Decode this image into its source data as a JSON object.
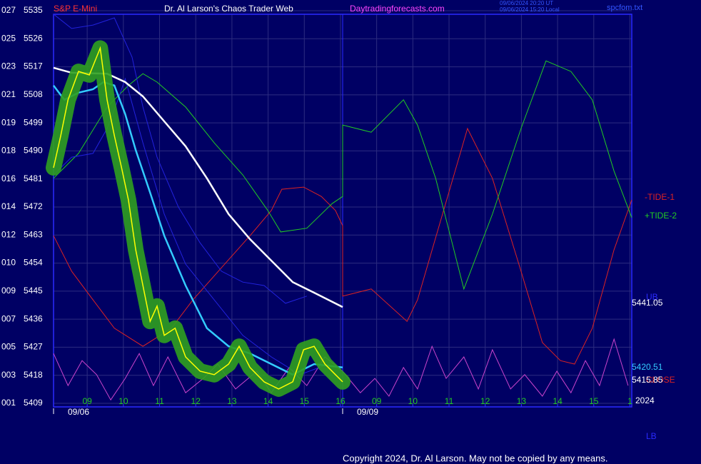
{
  "header": {
    "symbol": "S&P E-Mini",
    "title": "Dr. Al Larson's Chaos Trader Web",
    "site": "Daytradingforecasts.com",
    "time_ut": "09/06/2024 20:20 UT",
    "time_local": "09/06/2024 15:20 Local",
    "file": "spcfom.txt"
  },
  "chart_data": {
    "type": "line",
    "ylim": [
      5409,
      5535
    ],
    "yticks": [
      5409,
      5418,
      5427,
      5436,
      5445,
      5454,
      5463,
      5472,
      5481,
      5490,
      5499,
      5508,
      5517,
      5526,
      5535
    ],
    "ytick_codes": [
      "001",
      "003",
      "005",
      "007",
      "009",
      "010",
      "012",
      "014",
      "016",
      "018",
      "019",
      "021",
      "023",
      "025",
      "027"
    ],
    "xlim": [
      8.07,
      24.05
    ],
    "xticks": [
      {
        "value": 9,
        "label": "09"
      },
      10,
      11,
      12,
      13,
      14,
      15,
      16,
      {
        "value": 17,
        "label": "09"
      },
      {
        "value": 18,
        "label": "10"
      },
      {
        "value": 19,
        "label": "11"
      },
      {
        "value": 20,
        "label": "12"
      },
      {
        "value": 21,
        "label": "13"
      },
      {
        "value": 22,
        "label": "14"
      },
      {
        "value": 23,
        "label": "15"
      },
      {
        "value": 24,
        "label": "1"
      }
    ],
    "dates": [
      {
        "value": 8.07,
        "label": "09/06"
      },
      {
        "value": 16.06,
        "label": "09/09"
      }
    ],
    "grid": true,
    "series": [
      {
        "name": "-TIDE-1",
        "color": "#dd2222",
        "x": [
          8.07,
          8.57,
          9.16,
          9.75,
          10.54,
          11.33,
          11.92,
          12.71,
          13.5,
          14.09,
          14.38,
          14.98,
          15.47,
          15.86,
          16.06,
          16.06,
          16.85,
          17.84,
          18.13,
          18.82,
          19.51,
          20.2,
          20.99,
          21.58,
          22.08,
          22.47,
          22.96,
          23.56,
          24.05
        ],
        "values": [
          5462.8,
          5451.4,
          5442.2,
          5433.1,
          5427.3,
          5433.1,
          5442.2,
          5452.5,
          5462.8,
          5470.9,
          5477.7,
          5478.4,
          5475.4,
          5470.9,
          5466,
          5443.4,
          5445.7,
          5435.3,
          5442.2,
          5469.7,
          5497.2,
          5481.2,
          5451.4,
          5428.5,
          5422.7,
          5421.6,
          5433.1,
          5458.3,
          5474.3
        ]
      },
      {
        "name": "+TIDE-2",
        "color": "#22cc22",
        "x": [
          8.07,
          8.76,
          9.55,
          10.14,
          10.54,
          10.93,
          11.72,
          12.51,
          13.3,
          13.99,
          14.35,
          15.07,
          15.77,
          16.06,
          16.06,
          16.85,
          17.74,
          18.13,
          18.63,
          19.41,
          20.2,
          20.99,
          21.68,
          22.37,
          22.96,
          23.56,
          24.05
        ],
        "values": [
          5481.2,
          5489.2,
          5504.1,
          5511,
          5514.8,
          5512.1,
          5504.1,
          5492.6,
          5482.3,
          5470.9,
          5464,
          5465.2,
          5473.1,
          5475.4,
          5498.3,
          5496,
          5506.4,
          5498.3,
          5481.2,
          5445.7,
          5469.7,
          5497.2,
          5518.9,
          5515.5,
          5506.4,
          5483.5,
          5468.6
        ]
      },
      {
        "color": "#cc44cc",
        "x": [
          8.07,
          8.47,
          8.86,
          9.26,
          9.65,
          10.05,
          10.44,
          10.83,
          11.23,
          11.72,
          12.21,
          12.61,
          13.1,
          13.69,
          14.09,
          14.58,
          15.07,
          15.57,
          16.06,
          16.55,
          16.95,
          17.34,
          17.74,
          18.13,
          18.53,
          18.92,
          19.41,
          19.81,
          20.2,
          20.7,
          21.09,
          21.58,
          21.98,
          22.37,
          22.77,
          23.16,
          23.56,
          23.95
        ],
        "values": [
          5425,
          5414.7,
          5422.7,
          5418.2,
          5410.1,
          5417,
          5425,
          5414.7,
          5423.9,
          5412.4,
          5417,
          5421.6,
          5413.6,
          5419.3,
          5412.4,
          5420.5,
          5414.7,
          5423.9,
          5419.3,
          5412.4,
          5417,
          5411.3,
          5420.5,
          5413.6,
          5427.3,
          5417,
          5423.9,
          5413.6,
          5426.2,
          5413.6,
          5418.2,
          5411.3,
          5419.3,
          5412.4,
          5422.7,
          5414.7,
          5429.6,
          5414.7
        ]
      },
      {
        "color": "#2222dd",
        "x": [
          8.07,
          8.57,
          9.16,
          9.75,
          10.24,
          10.54,
          10.93,
          11.52,
          12.12,
          12.71,
          13.3,
          13.89,
          14.48,
          15.07
        ],
        "values": [
          5533.9,
          5529.3,
          5530.4,
          5532.7,
          5520.1,
          5504.1,
          5488,
          5472,
          5460.5,
          5451.4,
          5447.9,
          5446.8,
          5441.1,
          5443.4
        ]
      },
      {
        "color": "#2222dd",
        "x": [
          8.07,
          8.57,
          9.16,
          9.55,
          9.85,
          10.05,
          10.54,
          11.13,
          11.72,
          12.51,
          13.3,
          14.09,
          14.88,
          15.67
        ],
        "values": [
          5482.3,
          5488,
          5489.2,
          5497.2,
          5506.4,
          5513.2,
          5492.6,
          5469.7,
          5453.7,
          5442.2,
          5430.8,
          5423.9,
          5418.2,
          5421.6
        ]
      },
      {
        "color": "#ffffff",
        "width": 2.5,
        "x": [
          8.07,
          8.57,
          9.55,
          10.05,
          10.54,
          11.13,
          11.72,
          12.31,
          12.91,
          13.5,
          14.09,
          14.68,
          15.27,
          16.06
        ],
        "values": [
          5516.7,
          5515.1,
          5514.8,
          5512.1,
          5507.5,
          5499.5,
          5491.5,
          5481.2,
          5469.7,
          5461.7,
          5454.8,
          5447.9,
          5444.5,
          5439.9
        ]
      },
      {
        "color": "#33ccff",
        "width": 2.5,
        "x": [
          8.07,
          8.37,
          8.76,
          9.16,
          9.45,
          9.75,
          10.05,
          10.34,
          10.74,
          11.13,
          11.72,
          12.31,
          12.91,
          13.5,
          14.09,
          14.68,
          15.27,
          16.06
        ],
        "values": [
          5511,
          5506.4,
          5508.7,
          5509.8,
          5512.1,
          5511,
          5501.8,
          5490.3,
          5476.6,
          5462.8,
          5446.8,
          5433.1,
          5427.3,
          5425,
          5421.6,
          5418.2,
          5421.6,
          5420.5
        ]
      },
      {
        "color": "#ffff00",
        "halo": "#2fa01f",
        "width": 1.5,
        "x": [
          8.07,
          8.27,
          8.47,
          8.76,
          9.06,
          9.36,
          9.55,
          9.75,
          9.95,
          10.14,
          10.34,
          10.54,
          10.74,
          10.93,
          11.13,
          11.43,
          11.72,
          12.12,
          12.51,
          12.91,
          13.2,
          13.5,
          13.89,
          14.29,
          14.68,
          14.98,
          15.27,
          15.57,
          15.86,
          16.06
        ],
        "values": [
          5484.6,
          5494.9,
          5506.4,
          5515.5,
          5514.4,
          5523,
          5506.4,
          5494.9,
          5484.6,
          5474.3,
          5458.3,
          5446.8,
          5435.3,
          5440.2,
          5430.8,
          5433.1,
          5423.9,
          5419.3,
          5418.2,
          5421.6,
          5427.3,
          5420.5,
          5415.9,
          5413.6,
          5415.9,
          5426.2,
          5427.3,
          5421.6,
          5418.2,
          5415.9
        ]
      }
    ],
    "right_labels": [
      {
        "text": "UB",
        "color": "#2a2aff"
      },
      {
        "text": "5441.05",
        "color": "#ffffff"
      },
      {
        "text": "5420.51",
        "color": "#33ccff"
      },
      {
        "text": "CLOSE",
        "color": "#dd2222"
      },
      {
        "text": "5415.85",
        "color": "#ffffff"
      },
      {
        "text": "2024",
        "color": "#ffffff"
      },
      {
        "text": "LB",
        "color": "#2a2aff"
      }
    ]
  },
  "footer": {
    "copyright": "Copyright 2024, Dr. Al Larson. May not be copied by any means."
  }
}
